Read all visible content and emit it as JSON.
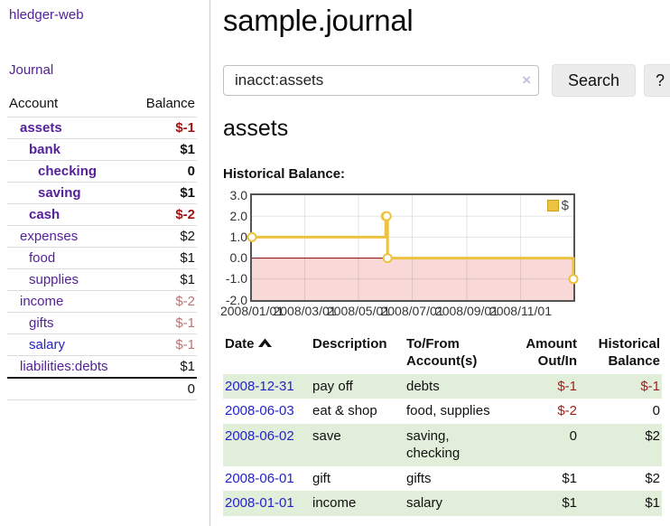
{
  "app": {
    "brand": "hledger-web"
  },
  "sidebar": {
    "journal_link": "Journal",
    "columns": {
      "account": "Account",
      "balance": "Balance"
    },
    "accounts": [
      {
        "name": "assets",
        "indent": 0,
        "bold": true,
        "balance": "$-1"
      },
      {
        "name": "bank",
        "indent": 1,
        "bold": true,
        "balance": "$1"
      },
      {
        "name": "checking",
        "indent": 2,
        "bold": true,
        "balance": "0"
      },
      {
        "name": "saving",
        "indent": 2,
        "bold": true,
        "balance": "$1"
      },
      {
        "name": "cash",
        "indent": 1,
        "bold": true,
        "balance": "$-2"
      },
      {
        "name": "expenses",
        "indent": 0,
        "bold": false,
        "balance": "$2"
      },
      {
        "name": "food",
        "indent": 1,
        "bold": false,
        "balance": "$1"
      },
      {
        "name": "supplies",
        "indent": 1,
        "bold": false,
        "balance": "$1"
      },
      {
        "name": "income",
        "indent": 0,
        "bold": false,
        "balance": "$-2"
      },
      {
        "name": "gifts",
        "indent": 1,
        "bold": false,
        "balance": "$-1"
      },
      {
        "name": "salary",
        "indent": 1,
        "bold": false,
        "balance": "$-1"
      },
      {
        "name": "liabilities:debts",
        "indent": 0,
        "bold": false,
        "balance": "$1"
      }
    ],
    "total": "0"
  },
  "header": {
    "title": "sample.journal"
  },
  "search": {
    "value": "inacct:assets",
    "clear_icon": "×",
    "button_label": "Search",
    "help_label": "?"
  },
  "account_page": {
    "heading": "assets",
    "chart_label": "Historical Balance:"
  },
  "chart_data": {
    "type": "line",
    "step": true,
    "title": "Historical Balance",
    "series": [
      {
        "name": "$",
        "color": "#edc240",
        "points": [
          {
            "x": "2008-01-01",
            "day": 0,
            "y": 1
          },
          {
            "x": "2008-06-01",
            "day": 152,
            "y": 2
          },
          {
            "x": "2008-06-02",
            "day": 153,
            "y": 2
          },
          {
            "x": "2008-06-03",
            "day": 154,
            "y": 0
          },
          {
            "x": "2008-12-31",
            "day": 365,
            "y": -1
          }
        ]
      }
    ],
    "xlim_days": [
      0,
      365
    ],
    "ylim": [
      -2,
      3
    ],
    "y_ticks": [
      {
        "v": 3,
        "label": "3.0"
      },
      {
        "v": 2,
        "label": "2.0"
      },
      {
        "v": 1,
        "label": "1.0"
      },
      {
        "v": 0,
        "label": "0.0"
      },
      {
        "v": -1,
        "label": "-1.0"
      },
      {
        "v": -2,
        "label": "-2.0"
      }
    ],
    "x_ticks": [
      {
        "day": 0,
        "label": "2008/01/01"
      },
      {
        "day": 60,
        "label": "2008/03/01"
      },
      {
        "day": 121,
        "label": "2008/05/01"
      },
      {
        "day": 182,
        "label": "2008/07/01"
      },
      {
        "day": 244,
        "label": "2008/09/01"
      },
      {
        "day": 305,
        "label": "2008/11/01"
      }
    ],
    "grid": true,
    "negative_fill": "#f9d8d8",
    "zero_line_color": "#8b0000",
    "legend": {
      "swatch_color": "#edc240",
      "label": "$",
      "position": "top-right"
    }
  },
  "register": {
    "columns": {
      "date": "Date",
      "description": "Description",
      "accounts": "To/From Account(s)",
      "amount": "Amount Out/In",
      "balance": "Historical Balance"
    },
    "sort": "ascending",
    "rows": [
      {
        "date": "2008-12-31",
        "description": "pay off",
        "accounts": "debts",
        "amount": "$-1",
        "balance": "$-1"
      },
      {
        "date": "2008-06-03",
        "description": "eat & shop",
        "accounts": "food, supplies",
        "amount": "$-2",
        "balance": "0"
      },
      {
        "date": "2008-06-02",
        "description": "save",
        "accounts": "saving, checking",
        "amount": "0",
        "balance": "$2"
      },
      {
        "date": "2008-06-01",
        "description": "gift",
        "accounts": "gifts",
        "amount": "$1",
        "balance": "$2"
      },
      {
        "date": "2008-01-01",
        "description": "income",
        "accounts": "salary",
        "amount": "$1",
        "balance": "$1"
      }
    ]
  }
}
